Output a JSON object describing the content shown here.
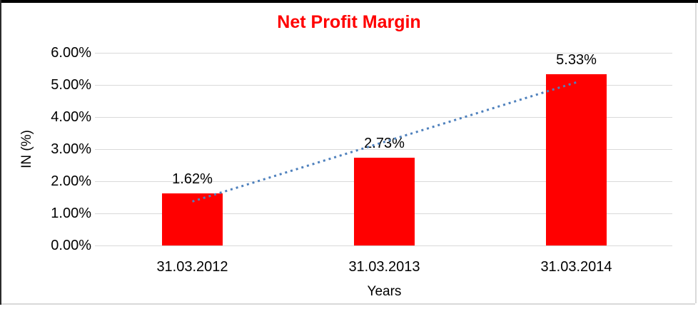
{
  "window": {
    "background": "#FFFFFF",
    "frame_border_top_color": "#000000",
    "frame_border_left_color": "#2B2B2B",
    "frame_border_light_color": "#D9D9D9"
  },
  "chart_data": {
    "type": "bar",
    "title": "Net Profit Margin",
    "title_color": "#FF0000",
    "categories": [
      "31.03.2012",
      "31.03.2013",
      "31.03.2014"
    ],
    "values": [
      1.62,
      2.73,
      5.33
    ],
    "data_labels": [
      "1.62%",
      "2.73%",
      "5.33%"
    ],
    "xlabel": "Years",
    "ylabel": "IN (%)",
    "ylim": [
      0,
      6
    ],
    "ytick_labels": [
      "0.00%",
      "1.00%",
      "2.00%",
      "3.00%",
      "4.00%",
      "5.00%",
      "6.00%"
    ],
    "grid": true,
    "gridline_color": "#D9D9D9",
    "legend": "none",
    "bar_color": "#FF0000",
    "text_color": "#000000",
    "trendline": {
      "type": "linear",
      "style": "dotted",
      "color": "#4F81BD",
      "start_value": 1.37,
      "end_value": 5.08
    }
  }
}
